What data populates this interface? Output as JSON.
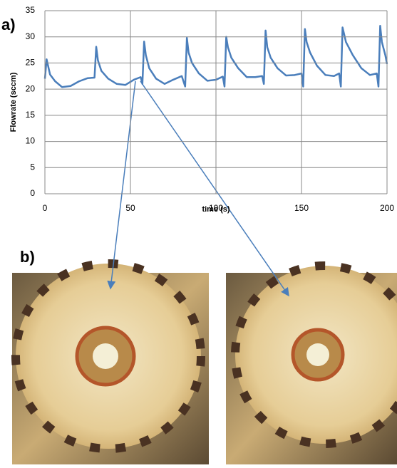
{
  "panel_a_label": "a)",
  "panel_b_label": "b)",
  "chart_data": {
    "type": "line",
    "xlabel": "time (s)",
    "ylabel": "Flowrate (sccm)",
    "x": [
      0,
      1,
      3,
      6,
      10,
      15,
      20,
      25,
      29,
      30,
      31,
      33,
      37,
      42,
      47,
      52,
      56,
      57,
      58,
      59,
      61,
      65,
      70,
      75,
      80,
      82,
      83,
      84,
      86,
      90,
      95,
      100,
      104,
      105,
      106,
      107,
      109,
      113,
      118,
      123,
      127,
      128,
      129,
      130,
      132,
      136,
      141,
      146,
      150,
      151,
      152,
      153,
      155,
      159,
      164,
      169,
      172,
      173,
      174,
      176,
      180,
      185,
      190,
      194,
      195,
      196,
      197,
      199,
      200
    ],
    "series": [
      {
        "color": "#4a7ebb",
        "values": [
          22,
          25.7,
          22.8,
          21.5,
          20.4,
          20.6,
          21.5,
          22.1,
          22.2,
          28.1,
          25.5,
          23.5,
          22,
          21,
          20.8,
          21.8,
          22.3,
          21,
          29.1,
          26.5,
          24,
          22,
          21,
          21.8,
          22.5,
          20.5,
          29.8,
          27,
          25,
          23,
          21.6,
          21.8,
          22.4,
          20.5,
          30,
          28,
          26,
          24,
          22.3,
          22.3,
          22.5,
          21,
          31.2,
          28,
          26,
          24,
          22.6,
          22.7,
          23,
          20.5,
          31.5,
          29,
          27,
          24.5,
          22.7,
          22.5,
          23,
          20.5,
          31.8,
          29,
          26.5,
          24,
          22.7,
          23,
          20.5,
          32.1,
          29,
          26.5,
          24.8
        ]
      }
    ],
    "xlim": [
      0,
      200
    ],
    "xticks": [
      0,
      50,
      100,
      150,
      200
    ],
    "ylim": [
      0,
      35
    ],
    "yticks": [
      0,
      5,
      10,
      15,
      20,
      25,
      30,
      35
    ],
    "grid": true
  }
}
